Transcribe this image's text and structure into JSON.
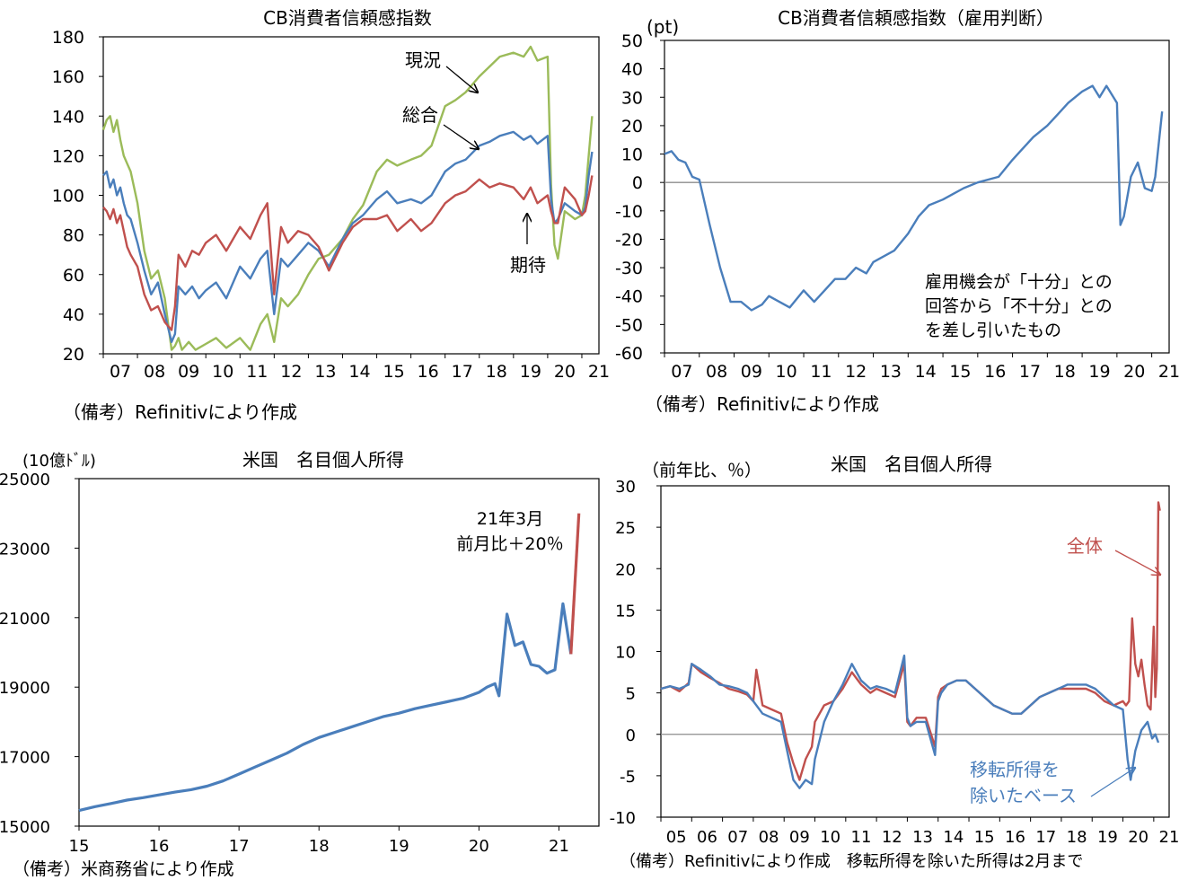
{
  "colors": {
    "blue": "#4a7ebb",
    "red": "#c0504d",
    "green": "#9bbb59",
    "zero": "#8c8c8c",
    "axis": "#000000"
  },
  "chart_data": [
    {
      "type": "line",
      "title": "CB消費者信頼感指数",
      "ylim": [
        20,
        180
      ],
      "yticks": [
        20,
        40,
        60,
        80,
        100,
        120,
        140,
        160,
        180
      ],
      "xlim": [
        2007,
        2021.5
      ],
      "xtick_labels": [
        "07",
        "08",
        "09",
        "10",
        "11",
        "12",
        "13",
        "14",
        "15",
        "16",
        "17",
        "18",
        "19",
        "20",
        "21"
      ],
      "source": "（備考）Refinitivにより作成",
      "annotations": [
        "現況",
        "総合",
        "期待"
      ],
      "series": [
        {
          "name": "現況",
          "color": "#9bbb59",
          "x": [
            2007,
            2007.1,
            2007.2,
            2007.3,
            2007.4,
            2007.5,
            2007.6,
            2007.7,
            2007.8,
            2008,
            2008.2,
            2008.4,
            2008.6,
            2008.8,
            2009,
            2009.1,
            2009.2,
            2009.3,
            2009.5,
            2009.7,
            2010,
            2010.3,
            2010.6,
            2011,
            2011.3,
            2011.6,
            2011.8,
            2012,
            2012.2,
            2012.4,
            2012.7,
            2013,
            2013.3,
            2013.6,
            2014,
            2014.3,
            2014.6,
            2015,
            2015.3,
            2015.6,
            2016,
            2016.3,
            2016.6,
            2017,
            2017.3,
            2017.6,
            2018,
            2018.3,
            2018.6,
            2019,
            2019.3,
            2019.5,
            2019.7,
            2020,
            2020.1,
            2020.2,
            2020.3,
            2020.5,
            2020.8,
            2021,
            2021.1,
            2021.2,
            2021.3
          ],
          "y": [
            133,
            138,
            140,
            132,
            138,
            128,
            120,
            116,
            112,
            96,
            72,
            58,
            62,
            48,
            22,
            24,
            28,
            22,
            26,
            22,
            25,
            28,
            23,
            28,
            22,
            35,
            40,
            26,
            48,
            44,
            50,
            60,
            68,
            70,
            78,
            88,
            95,
            112,
            118,
            115,
            118,
            120,
            125,
            145,
            148,
            152,
            160,
            165,
            170,
            172,
            170,
            175,
            168,
            170,
            105,
            75,
            68,
            92,
            88,
            90,
            100,
            120,
            140
          ]
        },
        {
          "name": "総合",
          "color": "#4a7ebb",
          "x": [
            2007,
            2007.1,
            2007.2,
            2007.3,
            2007.4,
            2007.5,
            2007.6,
            2007.7,
            2007.8,
            2008,
            2008.2,
            2008.4,
            2008.6,
            2008.8,
            2009,
            2009.1,
            2009.2,
            2009.4,
            2009.6,
            2009.8,
            2010,
            2010.3,
            2010.6,
            2011,
            2011.3,
            2011.6,
            2011.8,
            2012,
            2012.2,
            2012.4,
            2012.7,
            2013,
            2013.3,
            2013.6,
            2014,
            2014.3,
            2014.6,
            2015,
            2015.3,
            2015.6,
            2016,
            2016.3,
            2016.6,
            2017,
            2017.3,
            2017.6,
            2018,
            2018.3,
            2018.6,
            2019,
            2019.3,
            2019.5,
            2019.7,
            2020,
            2020.1,
            2020.2,
            2020.3,
            2020.5,
            2020.8,
            2021,
            2021.1,
            2021.2,
            2021.3
          ],
          "y": [
            110,
            112,
            104,
            108,
            100,
            104,
            96,
            90,
            88,
            76,
            62,
            50,
            56,
            40,
            26,
            30,
            54,
            50,
            54,
            48,
            52,
            56,
            48,
            64,
            58,
            68,
            72,
            40,
            68,
            64,
            70,
            76,
            72,
            64,
            78,
            86,
            90,
            98,
            102,
            96,
            98,
            96,
            100,
            112,
            116,
            118,
            125,
            127,
            130,
            132,
            128,
            130,
            126,
            130,
            98,
            86,
            88,
            96,
            92,
            90,
            94,
            110,
            122
          ]
        },
        {
          "name": "期待",
          "color": "#c0504d",
          "x": [
            2007,
            2007.1,
            2007.2,
            2007.3,
            2007.4,
            2007.5,
            2007.6,
            2007.7,
            2007.8,
            2008,
            2008.2,
            2008.4,
            2008.6,
            2008.8,
            2009,
            2009.1,
            2009.2,
            2009.4,
            2009.6,
            2009.8,
            2010,
            2010.3,
            2010.6,
            2011,
            2011.3,
            2011.6,
            2011.8,
            2012,
            2012.2,
            2012.4,
            2012.7,
            2013,
            2013.3,
            2013.6,
            2014,
            2014.3,
            2014.6,
            2015,
            2015.3,
            2015.6,
            2016,
            2016.3,
            2016.6,
            2017,
            2017.3,
            2017.6,
            2018,
            2018.3,
            2018.6,
            2019,
            2019.3,
            2019.5,
            2019.7,
            2020,
            2020.1,
            2020.2,
            2020.3,
            2020.5,
            2020.8,
            2021,
            2021.1,
            2021.2,
            2021.3
          ],
          "y": [
            94,
            92,
            88,
            93,
            86,
            90,
            82,
            74,
            70,
            64,
            50,
            42,
            44,
            36,
            32,
            44,
            70,
            64,
            72,
            70,
            76,
            80,
            72,
            84,
            78,
            90,
            96,
            50,
            84,
            76,
            82,
            80,
            74,
            62,
            76,
            84,
            88,
            88,
            90,
            82,
            88,
            82,
            86,
            96,
            100,
            102,
            108,
            104,
            106,
            104,
            98,
            104,
            96,
            100,
            92,
            86,
            86,
            104,
            98,
            90,
            92,
            100,
            110
          ]
        }
      ]
    },
    {
      "type": "line",
      "title": "CB消費者信頼感指数（雇用判断）",
      "yunit": "(pt)",
      "ylim": [
        -60,
        50
      ],
      "yticks": [
        -60,
        -50,
        -40,
        -30,
        -20,
        -10,
        0,
        10,
        20,
        30,
        40,
        50
      ],
      "xlim": [
        2007,
        2021.5
      ],
      "xtick_labels": [
        "07",
        "08",
        "09",
        "10",
        "11",
        "12",
        "13",
        "14",
        "15",
        "16",
        "17",
        "18",
        "19",
        "20",
        "21"
      ],
      "source": "（備考）Refinitivにより作成",
      "note": [
        "雇用機会が「十分」との",
        "回答から「不十分」との",
        "を差し引いたもの"
      ],
      "series": [
        {
          "name": "",
          "color": "#4a7ebb",
          "x": [
            2007,
            2007.2,
            2007.4,
            2007.6,
            2007.8,
            2008,
            2008.3,
            2008.6,
            2008.9,
            2009.2,
            2009.5,
            2009.8,
            2010,
            2010.3,
            2010.6,
            2011,
            2011.3,
            2011.6,
            2011.9,
            2012.2,
            2012.5,
            2012.8,
            2013,
            2013.3,
            2013.6,
            2014,
            2014.3,
            2014.6,
            2015,
            2015.3,
            2015.6,
            2016,
            2016.3,
            2016.6,
            2017,
            2017.3,
            2017.6,
            2018,
            2018.3,
            2018.6,
            2019,
            2019.3,
            2019.5,
            2019.7,
            2020,
            2020.1,
            2020.2,
            2020.4,
            2020.6,
            2020.8,
            2021,
            2021.1,
            2021.3
          ],
          "y": [
            10,
            11,
            8,
            7,
            2,
            1,
            -15,
            -30,
            -42,
            -42,
            -45,
            -43,
            -40,
            -42,
            -44,
            -38,
            -42,
            -38,
            -34,
            -34,
            -30,
            -32,
            -28,
            -26,
            -24,
            -18,
            -12,
            -8,
            -6,
            -4,
            -2,
            0,
            1,
            2,
            8,
            12,
            16,
            20,
            24,
            28,
            32,
            34,
            30,
            34,
            28,
            -15,
            -12,
            2,
            7,
            -2,
            -3,
            2,
            25
          ]
        }
      ]
    },
    {
      "type": "line",
      "title": "米国　名目個人所得",
      "yunit": "(10億ﾄﾞﾙ)",
      "ylim": [
        15000,
        25000
      ],
      "yticks": [
        15000,
        17000,
        19000,
        21000,
        23000,
        25000
      ],
      "xlim": [
        2015,
        2021.5
      ],
      "xtick_labels": [
        "15",
        "16",
        "17",
        "18",
        "19",
        "20",
        "21"
      ],
      "source": "（備考）米商務省により作成",
      "annotation": [
        "21年3月",
        "前月比＋20％"
      ],
      "series": [
        {
          "name": "",
          "color": "#4a7ebb",
          "x": [
            2015,
            2015.2,
            2015.4,
            2015.6,
            2015.8,
            2016,
            2016.2,
            2016.4,
            2016.6,
            2016.8,
            2017,
            2017.2,
            2017.4,
            2017.6,
            2017.8,
            2018,
            2018.2,
            2018.4,
            2018.6,
            2018.8,
            2019,
            2019.2,
            2019.4,
            2019.6,
            2019.8,
            2020,
            2020.1,
            2020.2,
            2020.25,
            2020.35,
            2020.45,
            2020.55,
            2020.65,
            2020.75,
            2020.85,
            2020.95,
            2021.05,
            2021.15
          ],
          "y": [
            15450,
            15560,
            15650,
            15750,
            15820,
            15900,
            15980,
            16050,
            16150,
            16300,
            16500,
            16700,
            16900,
            17100,
            17350,
            17550,
            17700,
            17850,
            18000,
            18150,
            18250,
            18380,
            18480,
            18580,
            18680,
            18850,
            19000,
            19100,
            18750,
            21100,
            20200,
            20300,
            19650,
            19600,
            19400,
            19500,
            21400,
            19950
          ]
        },
        {
          "name": "",
          "color": "#c0504d",
          "x": [
            2021.15,
            2021.25
          ],
          "y": [
            19950,
            24000
          ]
        }
      ]
    },
    {
      "type": "line",
      "title": "米国　名目個人所得",
      "yunit": "（前年比、％）",
      "ylim": [
        -10,
        30
      ],
      "yticks": [
        -10,
        -5,
        0,
        5,
        10,
        15,
        20,
        25,
        30
      ],
      "xlim": [
        2005,
        2021.5
      ],
      "xtick_labels": [
        "05",
        "06",
        "07",
        "08",
        "09",
        "10",
        "11",
        "12",
        "13",
        "14",
        "15",
        "16",
        "17",
        "18",
        "19",
        "20",
        "21"
      ],
      "source": "（備考）Refinitivにより作成　移転所得を除いた所得は2月まで",
      "series": [
        {
          "name": "全体",
          "color": "#c0504d",
          "x": [
            2005,
            2005.3,
            2005.6,
            2005.9,
            2006,
            2006.3,
            2006.6,
            2006.9,
            2007.2,
            2007.5,
            2007.8,
            2008,
            2008.1,
            2008.3,
            2008.6,
            2008.9,
            2009.1,
            2009.3,
            2009.5,
            2009.7,
            2009.9,
            2010,
            2010.3,
            2010.6,
            2010.9,
            2011.2,
            2011.5,
            2011.8,
            2012,
            2012.3,
            2012.6,
            2012.9,
            2013,
            2013.1,
            2013.3,
            2013.6,
            2013.9,
            2014,
            2014.1,
            2014.3,
            2014.6,
            2014.9,
            2015.2,
            2015.5,
            2015.8,
            2016.1,
            2016.4,
            2016.7,
            2017,
            2017.3,
            2017.6,
            2017.9,
            2018.2,
            2018.5,
            2018.8,
            2019.1,
            2019.4,
            2019.7,
            2020,
            2020.1,
            2020.2,
            2020.3,
            2020.4,
            2020.5,
            2020.6,
            2020.7,
            2020.8,
            2020.9,
            2021,
            2021.05,
            2021.1,
            2021.15,
            2021.2
          ],
          "y": [
            5.5,
            5.8,
            5.2,
            6.2,
            8.5,
            7.5,
            6.8,
            6.2,
            5.5,
            5.2,
            4.8,
            4.0,
            7.8,
            3.5,
            3.0,
            2.5,
            -1.0,
            -3.5,
            -5.5,
            -3.0,
            -1.5,
            1.5,
            3.5,
            4.0,
            5.5,
            7.5,
            6.0,
            5.0,
            5.5,
            5.0,
            4.5,
            8.5,
            1.5,
            1.0,
            2.0,
            2.0,
            -1.5,
            4.5,
            5.5,
            6.0,
            6.5,
            6.5,
            5.5,
            4.5,
            3.5,
            3.0,
            2.5,
            2.5,
            3.5,
            4.5,
            5.0,
            5.5,
            5.5,
            5.5,
            5.5,
            5.0,
            4.0,
            3.5,
            4.0,
            3.5,
            4.0,
            14.0,
            8.5,
            7.0,
            9.0,
            6.0,
            3.5,
            3.0,
            13.0,
            4.5,
            8.0,
            28.0,
            27.0
          ]
        },
        {
          "name": "移転所得を除いたベース",
          "color": "#4a7ebb",
          "x": [
            2005,
            2005.3,
            2005.6,
            2005.9,
            2006,
            2006.3,
            2006.6,
            2006.9,
            2007.2,
            2007.5,
            2007.8,
            2008,
            2008.3,
            2008.6,
            2008.9,
            2009.1,
            2009.3,
            2009.5,
            2009.7,
            2009.9,
            2010,
            2010.3,
            2010.6,
            2010.9,
            2011.2,
            2011.5,
            2011.8,
            2012,
            2012.3,
            2012.6,
            2012.9,
            2013,
            2013.1,
            2013.3,
            2013.6,
            2013.9,
            2014,
            2014.1,
            2014.3,
            2014.6,
            2014.9,
            2015.2,
            2015.5,
            2015.8,
            2016.1,
            2016.4,
            2016.7,
            2017,
            2017.3,
            2017.6,
            2017.9,
            2018.2,
            2018.5,
            2018.8,
            2019.1,
            2019.4,
            2019.7,
            2020,
            2020.15,
            2020.25,
            2020.4,
            2020.6,
            2020.8,
            2020.95,
            2021.05,
            2021.15
          ],
          "y": [
            5.5,
            5.8,
            5.5,
            6.0,
            8.5,
            7.8,
            7.0,
            6.0,
            5.8,
            5.5,
            5.0,
            4.0,
            2.5,
            2.0,
            1.5,
            -2.0,
            -5.5,
            -6.5,
            -5.5,
            -6.0,
            -3.0,
            1.5,
            4.0,
            6.0,
            8.5,
            6.5,
            5.5,
            5.8,
            5.5,
            5.0,
            9.5,
            2.0,
            1.0,
            1.5,
            1.5,
            -2.5,
            4.0,
            5.0,
            6.0,
            6.5,
            6.5,
            5.5,
            4.5,
            3.5,
            3.0,
            2.5,
            2.5,
            3.5,
            4.5,
            5.0,
            5.5,
            6.0,
            6.0,
            6.0,
            5.5,
            4.5,
            3.5,
            3.0,
            -3.0,
            -5.5,
            -2.0,
            0.5,
            1.5,
            -0.5,
            0.0,
            -1.0
          ]
        }
      ]
    }
  ]
}
